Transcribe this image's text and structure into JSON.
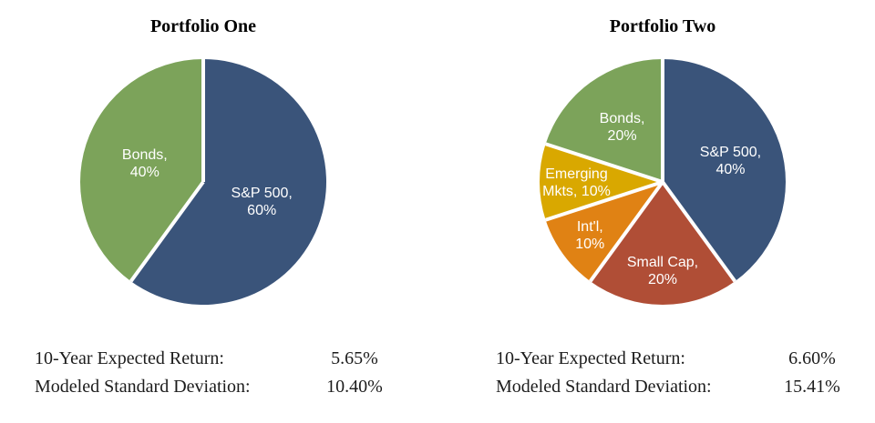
{
  "page": {
    "background": "#FFFFFF"
  },
  "chart_data": [
    {
      "type": "pie",
      "title": "Portfolio One",
      "start_angle_deg": 0,
      "direction": "clockwise",
      "separator_color": "#FFFFFF",
      "label_color": "#FFFFFF",
      "slices": [
        {
          "label": "S&P 500",
          "value": 60,
          "unit": "%",
          "label_lines": [
            "S&P 500,",
            "60%"
          ],
          "color": "#3A547A",
          "label_r": 0.5
        },
        {
          "label": "Bonds",
          "value": 40,
          "unit": "%",
          "label_lines": [
            "Bonds,",
            "40%"
          ],
          "color": "#7CA35A",
          "label_r": 0.5
        }
      ],
      "stats": [
        {
          "label": "10-Year Expected Return:",
          "value": "5.65%"
        },
        {
          "label": "Modeled Standard Deviation:",
          "value": "10.40%"
        }
      ]
    },
    {
      "type": "pie",
      "title": "Portfolio Two",
      "start_angle_deg": 0,
      "direction": "clockwise",
      "separator_color": "#FFFFFF",
      "label_color": "#FFFFFF",
      "slices": [
        {
          "label": "S&P 500",
          "value": 40,
          "unit": "%",
          "label_lines": [
            "S&P 500,",
            "40%"
          ],
          "color": "#3A547A",
          "label_r": 0.58
        },
        {
          "label": "Small Cap",
          "value": 20,
          "unit": "%",
          "label_lines": [
            "Small Cap,",
            "20%"
          ],
          "color": "#B04E36",
          "label_r": 0.72
        },
        {
          "label": "Int'l",
          "value": 10,
          "unit": "%",
          "label_lines": [
            "Int'l,",
            "10%"
          ],
          "color": "#E08214",
          "label_r": 0.73
        },
        {
          "label": "Emerging Mkts",
          "value": 10,
          "unit": "%",
          "label_lines": [
            "Emerging",
            "Mkts, 10%"
          ],
          "color": "#D9A800",
          "label_r": 0.7
        },
        {
          "label": "Bonds",
          "value": 20,
          "unit": "%",
          "label_lines": [
            "Bonds,",
            "20%"
          ],
          "color": "#7CA35A",
          "label_r": 0.56
        }
      ],
      "stats": [
        {
          "label": "10-Year Expected Return:",
          "value": "6.60%"
        },
        {
          "label": "Modeled Standard Deviation:",
          "value": "15.41%"
        }
      ]
    }
  ]
}
